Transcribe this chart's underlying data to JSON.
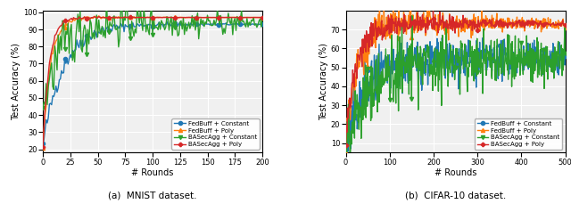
{
  "mnist": {
    "xlabel": "# Rounds",
    "ylabel": "Test Accuracy (%)",
    "xlim": [
      0,
      200
    ],
    "ylim": [
      18,
      101
    ],
    "yticks": [
      20,
      30,
      40,
      50,
      60,
      70,
      80,
      90,
      100
    ],
    "xticks": [
      0,
      25,
      50,
      75,
      100,
      125,
      150,
      175,
      200
    ],
    "caption": "(a)  MNIST dataset.",
    "series": [
      {
        "label": "FedBuff + Constant",
        "color": "#1f77b4",
        "marker": "o",
        "markevery": 20,
        "markersize": 3,
        "linewidth": 1.0,
        "start_val": 22,
        "end_val": 93,
        "rounds": 200,
        "noise_scale": 3.0,
        "noise_decay": 2.5,
        "rise_speed": 0.055
      },
      {
        "label": "FedBuff + Poly",
        "color": "#ff7f0e",
        "marker": "^",
        "markevery": 20,
        "markersize": 3,
        "linewidth": 1.0,
        "start_val": 20,
        "end_val": 97,
        "rounds": 200,
        "noise_scale": 1.2,
        "noise_decay": 4.0,
        "rise_speed": 0.14
      },
      {
        "label": "BASecAgg + Constant",
        "color": "#2ca02c",
        "marker": "v",
        "markevery": 20,
        "markersize": 3,
        "linewidth": 1.0,
        "start_val": 44,
        "end_val": 94,
        "rounds": 200,
        "noise_scale": 9.0,
        "noise_decay": 1.2,
        "rise_speed": 0.065
      },
      {
        "label": "BASecAgg + Poly",
        "color": "#d62728",
        "marker": "P",
        "markevery": 20,
        "markersize": 3,
        "linewidth": 1.0,
        "start_val": 20,
        "end_val": 97,
        "rounds": 200,
        "noise_scale": 0.8,
        "noise_decay": 5.0,
        "rise_speed": 0.17
      }
    ]
  },
  "cifar": {
    "xlabel": "# Rounds",
    "ylabel": "Test Accuracy (%)",
    "xlim": [
      0,
      500
    ],
    "ylim": [
      5,
      80
    ],
    "yticks": [
      10,
      20,
      30,
      40,
      50,
      60,
      70
    ],
    "xticks": [
      0,
      100,
      200,
      300,
      400,
      500
    ],
    "caption": "(b)  CIFAR-10 dataset.",
    "series": [
      {
        "label": "FedBuff + Constant",
        "color": "#1f77b4",
        "marker": "o",
        "markevery": 50,
        "markersize": 3,
        "linewidth": 1.0,
        "start_val": 10,
        "end_val": 54,
        "rounds": 500,
        "noise_scale": 8.0,
        "noise_decay": 0.8,
        "rise_speed": 0.02
      },
      {
        "label": "FedBuff + Poly",
        "color": "#ff7f0e",
        "marker": "^",
        "markevery": 50,
        "markersize": 3,
        "linewidth": 1.0,
        "start_val": 10,
        "end_val": 73,
        "rounds": 500,
        "noise_scale": 6.0,
        "noise_decay": 1.5,
        "rise_speed": 0.038
      },
      {
        "label": "BASecAgg + Constant",
        "color": "#2ca02c",
        "marker": "v",
        "markevery": 50,
        "markersize": 3,
        "linewidth": 1.0,
        "start_val": 10,
        "end_val": 54,
        "rounds": 500,
        "noise_scale": 10.0,
        "noise_decay": 0.6,
        "rise_speed": 0.018
      },
      {
        "label": "BASecAgg + Poly",
        "color": "#d62728",
        "marker": "P",
        "markevery": 50,
        "markersize": 3,
        "linewidth": 1.0,
        "start_val": 10,
        "end_val": 73,
        "rounds": 500,
        "noise_scale": 5.0,
        "noise_decay": 2.0,
        "rise_speed": 0.042
      }
    ]
  },
  "background_color": "#f0f0f0"
}
